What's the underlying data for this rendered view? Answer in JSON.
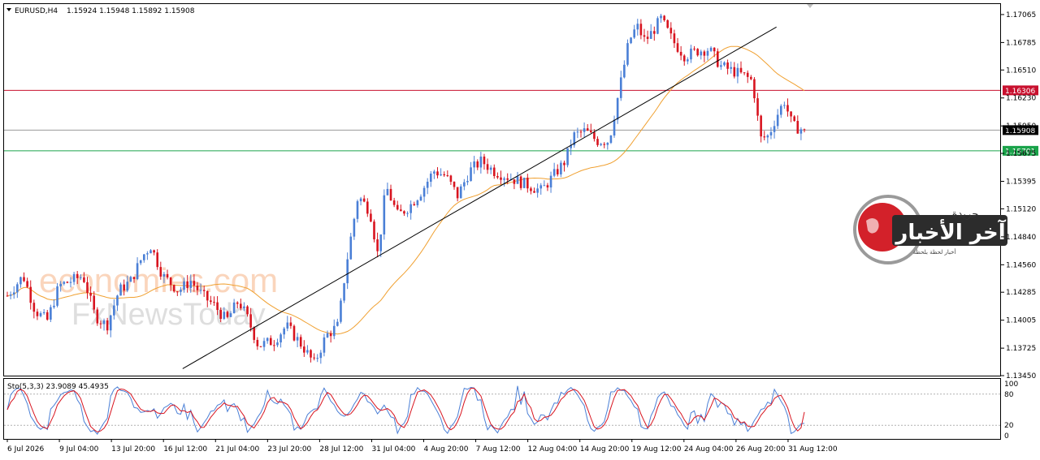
{
  "header": {
    "symbol": "EURUSD,H4",
    "ohlc": "1.15924 1.15948 1.15892 1.15908"
  },
  "indicator": {
    "label": "Sto(5,3,3) 23.9089 45.4935",
    "levels": [
      "100",
      "80",
      "20",
      "0"
    ]
  },
  "watermark": {
    "site": "economies.com",
    "brand": "FxNewsToday",
    "logo_text_main": "آخر الأخبار",
    "logo_text_top": "جريدة",
    "logo_text_sub": "أخبار لحظة بلحظة"
  },
  "colors": {
    "bull": "#4a7fd6",
    "bear": "#d8141f",
    "ma": "#f0a030",
    "resistance": "#c8102e",
    "support": "#1aa34a",
    "current": "#000000",
    "stoch_main": "#4a7fd6",
    "stoch_signal": "#d8141f"
  },
  "chart_data": {
    "type": "candlestick",
    "symbol": "EURUSD",
    "timeframe": "H4",
    "ylim": [
      1.1345,
      1.1717
    ],
    "price_ticks": [
      "1.17065",
      "1.16785",
      "1.16510",
      "1.16230",
      "1.15950",
      "1.15675",
      "1.15395",
      "1.15120",
      "1.14840",
      "1.14560",
      "1.14285",
      "1.14005",
      "1.13725",
      "1.13450"
    ],
    "time_labels": [
      "6 Jul 2026",
      "9 Jul 04:00",
      "13 Jul 20:00",
      "16 Jul 12:00",
      "21 Jul 04:00",
      "23 Jul 20:00",
      "28 Jul 12:00",
      "31 Jul 04:00",
      "4 Aug 20:00",
      "7 Aug 12:00",
      "12 Aug 04:00",
      "14 Aug 20:00",
      "19 Aug 12:00",
      "24 Aug 04:00",
      "26 Aug 20:00",
      "31 Aug 12:00"
    ],
    "horizontal_levels": [
      {
        "price": 1.16306,
        "label": "1.16306",
        "role": "resistance"
      },
      {
        "price": 1.15908,
        "label": "1.15908",
        "role": "current"
      },
      {
        "price": 1.15701,
        "label": "1.15701",
        "role": "support"
      }
    ],
    "trendline": {
      "from_bar": 0.22,
      "from_price": 1.1352,
      "to_bar": 0.965,
      "to_price": 1.1694
    },
    "price_path": [
      [
        0,
        1.1425
      ],
      [
        0.02,
        1.1445
      ],
      [
        0.035,
        1.141
      ],
      [
        0.05,
        1.14
      ],
      [
        0.065,
        1.1435
      ],
      [
        0.08,
        1.144
      ],
      [
        0.095,
        1.1445
      ],
      [
        0.11,
        1.1405
      ],
      [
        0.125,
        1.1395
      ],
      [
        0.14,
        1.143
      ],
      [
        0.155,
        1.144
      ],
      [
        0.17,
        1.1465
      ],
      [
        0.18,
        1.1475
      ],
      [
        0.195,
        1.1445
      ],
      [
        0.215,
        1.143
      ],
      [
        0.23,
        1.144
      ],
      [
        0.245,
        1.1425
      ],
      [
        0.26,
        1.1415
      ],
      [
        0.275,
        1.14
      ],
      [
        0.29,
        1.142
      ],
      [
        0.3,
        1.1405
      ],
      [
        0.315,
        1.1375
      ],
      [
        0.335,
        1.138
      ],
      [
        0.35,
        1.1395
      ],
      [
        0.37,
        1.1375
      ],
      [
        0.385,
        1.1357
      ],
      [
        0.4,
        1.1385
      ],
      [
        0.415,
        1.1395
      ],
      [
        0.425,
        1.1455
      ],
      [
        0.44,
        1.1525
      ],
      [
        0.455,
        1.151
      ],
      [
        0.465,
        1.1465
      ],
      [
        0.475,
        1.1535
      ],
      [
        0.49,
        1.1505
      ],
      [
        0.505,
        1.1515
      ],
      [
        0.52,
        1.153
      ],
      [
        0.535,
        1.155
      ],
      [
        0.55,
        1.1545
      ],
      [
        0.565,
        1.1525
      ],
      [
        0.58,
        1.155
      ],
      [
        0.595,
        1.156
      ],
      [
        0.61,
        1.155
      ],
      [
        0.625,
        1.1545
      ],
      [
        0.64,
        1.154
      ],
      [
        0.655,
        1.1535
      ],
      [
        0.67,
        1.153
      ],
      [
        0.685,
        1.1545
      ],
      [
        0.7,
        1.156
      ],
      [
        0.71,
        1.1585
      ],
      [
        0.725,
        1.159
      ],
      [
        0.74,
        1.158
      ],
      [
        0.755,
        1.158
      ],
      [
        0.77,
        1.164
      ],
      [
        0.78,
        1.168
      ],
      [
        0.79,
        1.1695
      ],
      [
        0.8,
        1.168
      ],
      [
        0.81,
        1.169
      ],
      [
        0.82,
        1.1702
      ],
      [
        0.835,
        1.168
      ],
      [
        0.85,
        1.1665
      ],
      [
        0.865,
        1.167
      ],
      [
        0.88,
        1.1672
      ],
      [
        0.895,
        1.1655
      ],
      [
        0.91,
        1.165
      ],
      [
        0.925,
        1.1645
      ],
      [
        0.935,
        1.164
      ],
      [
        0.945,
        1.1582
      ],
      [
        0.955,
        1.1585
      ],
      [
        0.965,
        1.1605
      ],
      [
        0.975,
        1.162
      ],
      [
        0.985,
        1.1595
      ],
      [
        1.0,
        1.15908
      ]
    ]
  }
}
